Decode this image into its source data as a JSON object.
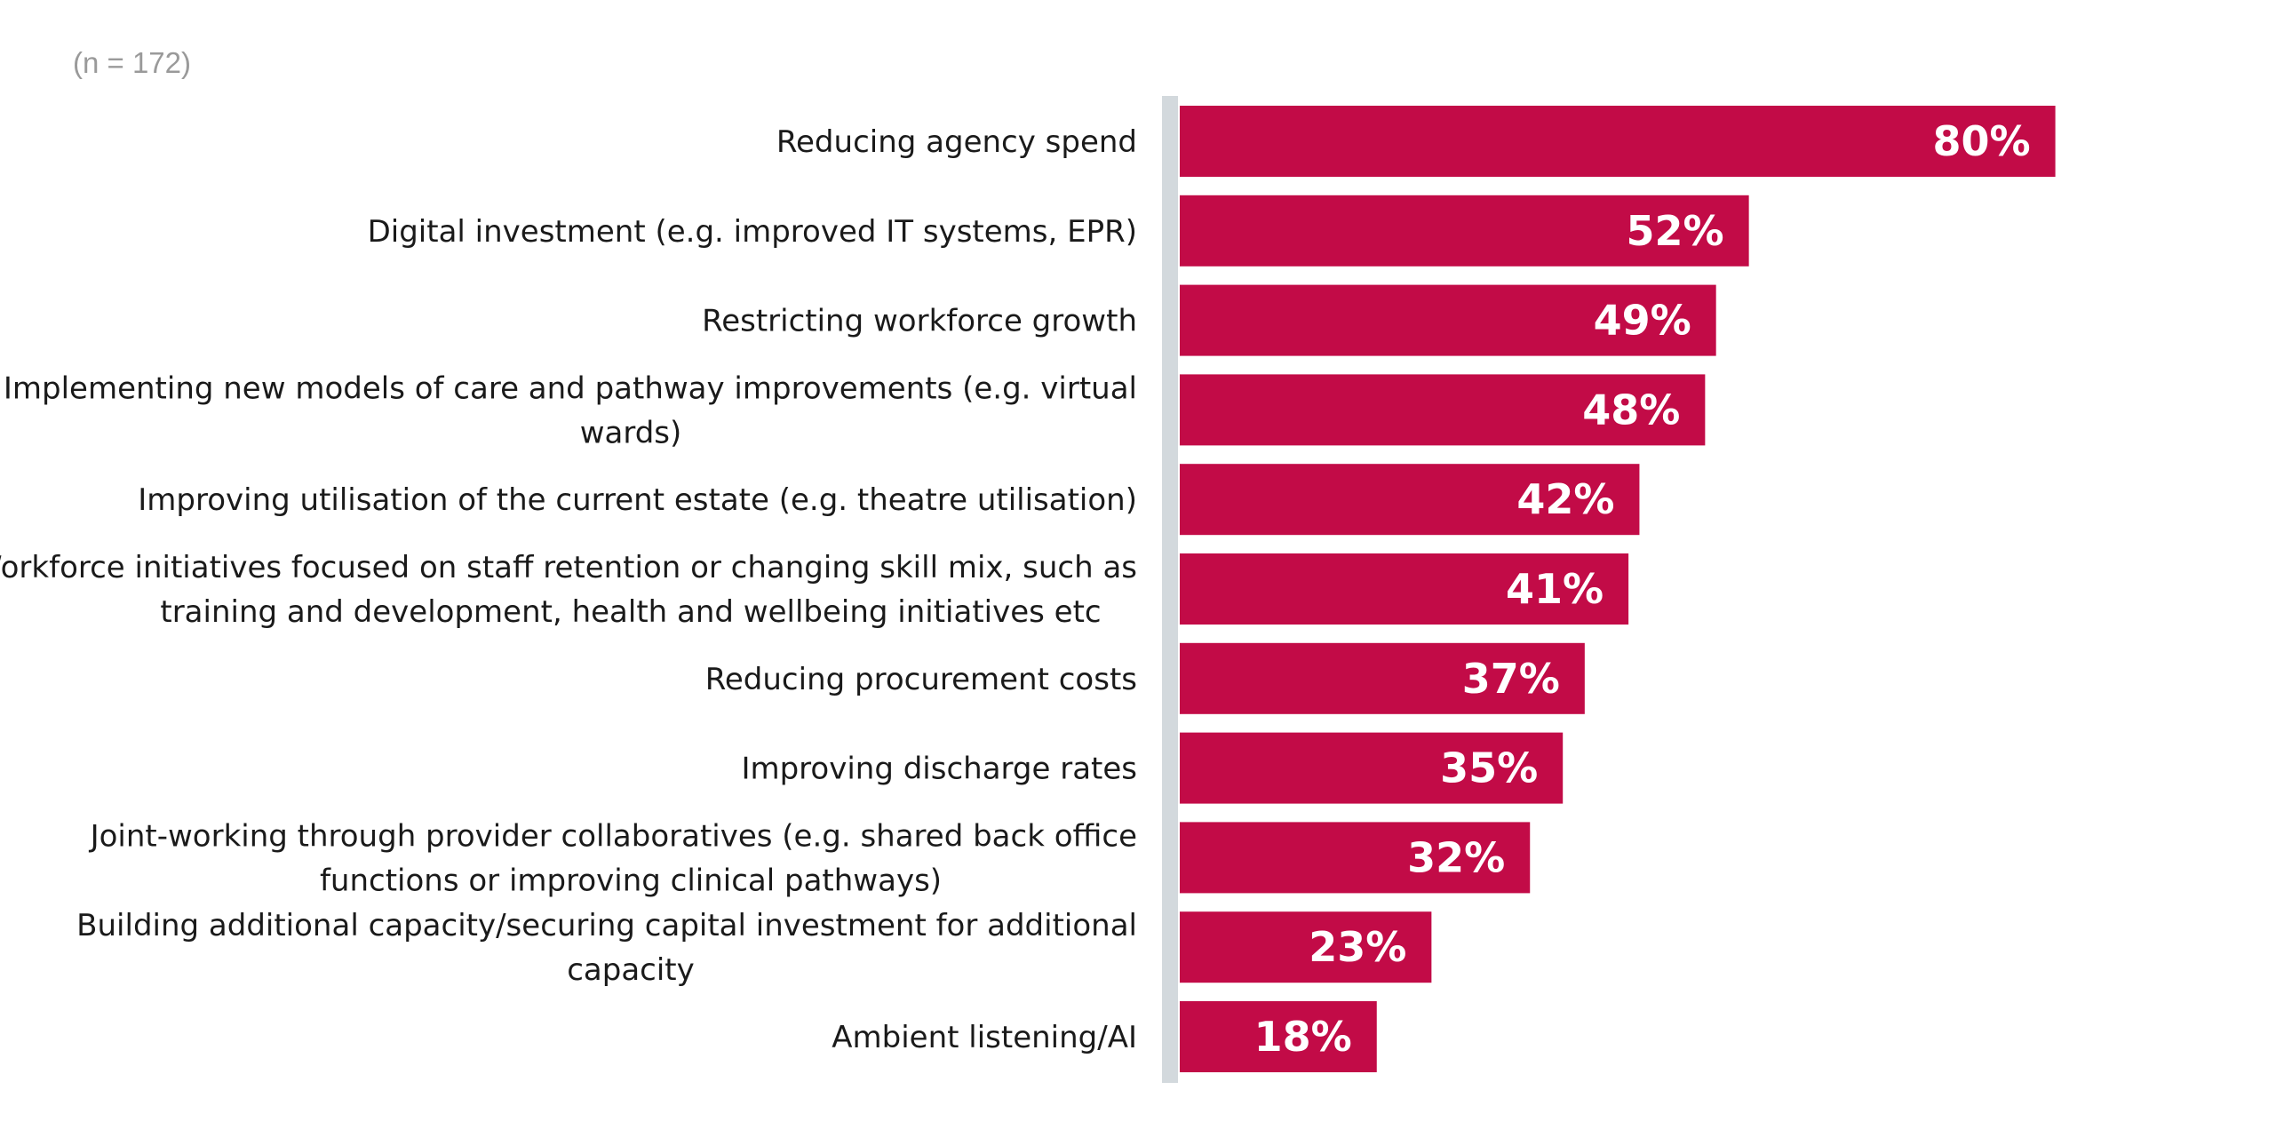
{
  "note": "(n = 172)",
  "colors": {
    "bar": "#c20b47",
    "axis": "#d3d9dd",
    "label": "#1a1a1a",
    "value_label": "#ffffff",
    "note": "#9a9a9a"
  },
  "chart_data": {
    "type": "bar",
    "orientation": "horizontal",
    "categories": [
      "Reducing agency spend",
      "Digital investment (e.g. improved IT systems, EPR)",
      "Restricting workforce growth",
      "Implementing new models of care and pathway improvements (e.g. virtual wards)",
      "Improving utilisation of the current estate (e.g. theatre utilisation)",
      "Workforce initiatives focused on staff retention or changing skill mix, such as training and development, health and wellbeing initiatives etc",
      "Reducing procurement costs",
      "Improving discharge rates",
      "Joint-working through provider collaboratives (e.g. shared back office functions or improving clinical pathways)",
      "Building additional capacity/securing capital investment for additional capacity",
      "Ambient listening/AI"
    ],
    "category_lines": [
      [
        "Reducing agency spend"
      ],
      [
        "Digital investment (e.g. improved IT systems, EPR)"
      ],
      [
        "Restricting workforce growth"
      ],
      [
        "Implementing new models of care and pathway improvements (e.g. virtual",
        "wards)"
      ],
      [
        "Improving utilisation of the current estate (e.g. theatre utilisation)"
      ],
      [
        "Workforce initiatives focused on staff retention or changing skill mix, such as",
        "training and development, health and wellbeing initiatives etc"
      ],
      [
        "Reducing procurement costs"
      ],
      [
        "Improving discharge rates"
      ],
      [
        "Joint-working through provider collaboratives (e.g. shared back office",
        "functions or improving clinical pathways)"
      ],
      [
        "Building additional capacity/securing capital investment for additional",
        "capacity"
      ],
      [
        "Ambient listening/AI"
      ]
    ],
    "values": [
      80,
      52,
      49,
      48,
      42,
      41,
      37,
      35,
      32,
      23,
      18
    ],
    "value_labels": [
      "80%",
      "52%",
      "49%",
      "48%",
      "42%",
      "41%",
      "37%",
      "35%",
      "32%",
      "23%",
      "18%"
    ],
    "unit": "%",
    "xlim": [
      0,
      100
    ],
    "grid": false,
    "legend": "none",
    "title": "",
    "xlabel": "",
    "ylabel": ""
  }
}
